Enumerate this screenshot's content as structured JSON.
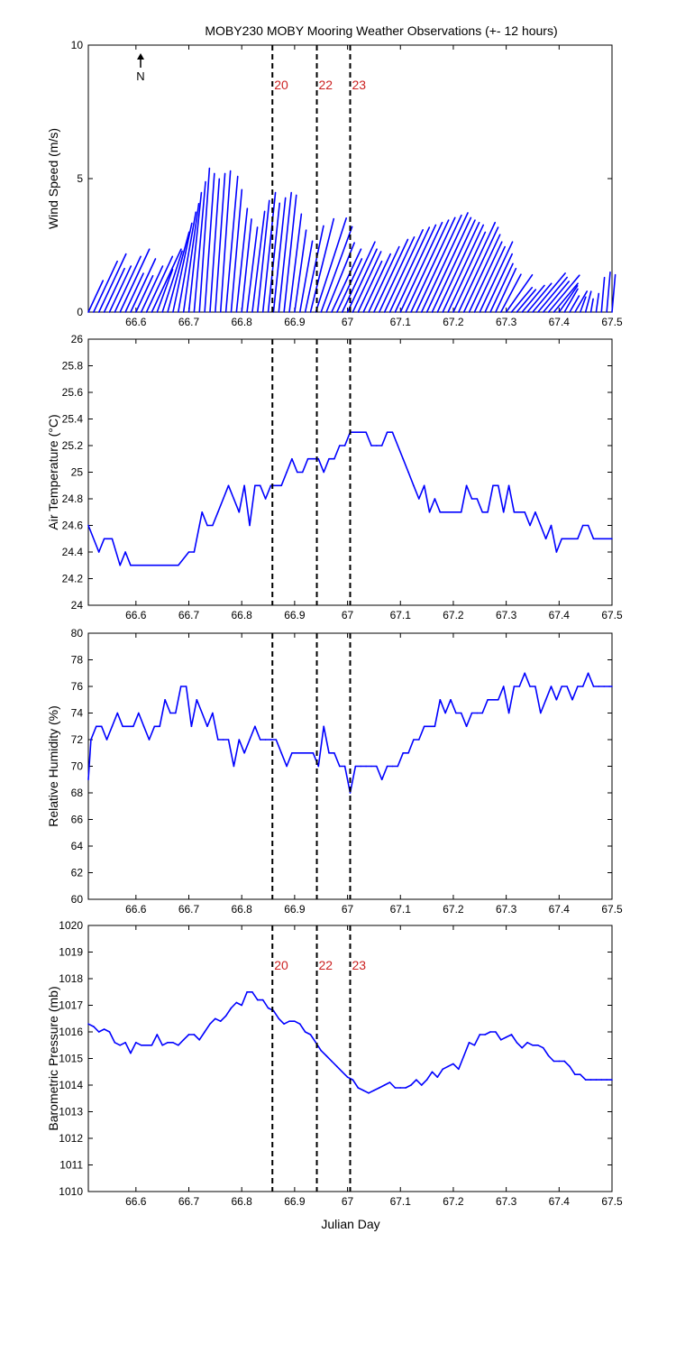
{
  "figure": {
    "title": "MOBY230 MOBY Mooring Weather Observations (+- 12 hours)",
    "xlabel": "Julian Day",
    "north_label": "N"
  },
  "colors": {
    "data": "#0000ff",
    "marker_label": "#cc2222",
    "axis": "#000000"
  },
  "chart_data": [
    {
      "type": "line",
      "variant": "wind-vector-stick",
      "ylabel": "Wind Speed (m/s)",
      "xlim": [
        66.51,
        67.5
      ],
      "ylim": [
        0,
        10
      ],
      "xticks": [
        66.6,
        66.7,
        66.8,
        66.9,
        67,
        67.1,
        67.2,
        67.3,
        67.4,
        67.5
      ],
      "yticks": [
        0,
        5,
        10
      ],
      "x_tick_labels_visible": true,
      "markers": [
        {
          "x": 66.858,
          "label": "20"
        },
        {
          "x": 66.942,
          "label": "22"
        },
        {
          "x": 67.005,
          "label": "23"
        }
      ],
      "series": [
        {
          "x": [
            66.51,
            66.52,
            66.53,
            66.54,
            66.55,
            66.56,
            66.57,
            66.58,
            66.59,
            66.6,
            66.61,
            66.62,
            66.63,
            66.64,
            66.65,
            66.66,
            66.67,
            66.68,
            66.69,
            66.7,
            66.71,
            66.72,
            66.73,
            66.74,
            66.75,
            66.76,
            66.77,
            66.78,
            66.79,
            66.8,
            66.81,
            66.82,
            66.83,
            66.84,
            66.85,
            66.86,
            66.87,
            66.88,
            66.89,
            66.9,
            66.91,
            66.92,
            66.93,
            66.94,
            66.95,
            66.96,
            66.97,
            66.98,
            66.99,
            67.0,
            67.01,
            67.02,
            67.03,
            67.04,
            67.05,
            67.06,
            67.07,
            67.08,
            67.09,
            67.1,
            67.11,
            67.12,
            67.13,
            67.14,
            67.15,
            67.16,
            67.17,
            67.18,
            67.19,
            67.2,
            67.21,
            67.22,
            67.23,
            67.24,
            67.25,
            67.26,
            67.27,
            67.28,
            67.29,
            67.3,
            67.31,
            67.32,
            67.33,
            67.34,
            67.35,
            67.36,
            67.37,
            67.38,
            67.39,
            67.4,
            67.41,
            67.42,
            67.43,
            67.44,
            67.45,
            67.46,
            67.47,
            67.48,
            67.49,
            67.5
          ],
          "speed": [
            1.3,
            2.1,
            2.4,
            1.8,
            1.9,
            2.3,
            2.6,
            1.6,
            2.2,
            1.5,
            1.9,
            2.3,
            2.6,
            1.7,
            2.4,
            3.1,
            3.4,
            3.8,
            4.1,
            4.5,
            4.9,
            5.4,
            5.2,
            5.0,
            5.2,
            5.3,
            5.1,
            4.6,
            3.9,
            3.5,
            3.2,
            3.8,
            4.2,
            4.5,
            4.1,
            4.3,
            4.5,
            4.4,
            3.7,
            3.1,
            2.7,
            3.3,
            3.6,
            3.7,
            3.4,
            2.8,
            2.6,
            2.2,
            2.9,
            2.6,
            2.5,
            2.1,
            2.4,
            2.7,
            3.0,
            3.1,
            3.4,
            3.5,
            3.6,
            3.7,
            3.8,
            3.9,
            4.0,
            4.1,
            3.9,
            3.8,
            3.7,
            3.6,
            3.3,
            3.7,
            3.5,
            3.2,
            2.9,
            2.7,
            2.9,
            2.4,
            2.0,
            1.8,
            1.6,
            1.7,
            1.2,
            1.1,
            1.3,
            1.4,
            1.9,
            1.7,
            1.5,
            1.8,
            1.4,
            1.2,
            1.0,
            0.7,
            0.9,
            0.6,
            0.8,
            0.5,
            0.7,
            1.3,
            1.5,
            1.4
          ],
          "dir_deg": [
            25,
            25,
            25,
            25,
            25,
            25,
            25,
            25,
            25,
            25,
            25,
            25,
            25,
            20,
            18,
            15,
            12,
            10,
            8,
            6,
            5,
            4,
            4,
            4,
            4,
            4,
            5,
            5,
            6,
            6,
            7,
            7,
            6,
            6,
            6,
            6,
            6,
            6,
            7,
            8,
            10,
            12,
            14,
            18,
            20,
            22,
            25,
            25,
            25,
            25,
            25,
            25,
            25,
            25,
            25,
            25,
            25,
            25,
            25,
            25,
            25,
            25,
            25,
            25,
            25,
            25,
            25,
            25,
            25,
            25,
            25,
            25,
            25,
            25,
            25,
            25,
            25,
            25,
            28,
            35,
            40,
            40,
            40,
            40,
            40,
            40,
            40,
            40,
            40,
            35,
            30,
            30,
            30,
            20,
            15,
            10,
            8,
            5,
            5,
            5
          ]
        }
      ]
    },
    {
      "type": "line",
      "ylabel": "Air Temperature (°C)",
      "xlim": [
        66.51,
        67.5
      ],
      "ylim": [
        24,
        26
      ],
      "xticks": [
        66.6,
        66.7,
        66.8,
        66.9,
        67,
        67.1,
        67.2,
        67.3,
        67.4,
        67.5
      ],
      "yticks": [
        24,
        24.2,
        24.4,
        24.6,
        24.8,
        25,
        25.2,
        25.4,
        25.6,
        25.8,
        26
      ],
      "x_tick_labels_visible": true,
      "markers": [
        {
          "x": 66.858
        },
        {
          "x": 66.942
        },
        {
          "x": 67.005
        }
      ],
      "series": [
        {
          "x": [
            66.51,
            66.53,
            66.54,
            66.555,
            66.57,
            66.58,
            66.59,
            66.605,
            66.62,
            66.64,
            66.66,
            66.68,
            66.7,
            66.71,
            66.725,
            66.735,
            66.745,
            66.755,
            66.765,
            66.775,
            66.785,
            66.795,
            66.805,
            66.815,
            66.825,
            66.835,
            66.845,
            66.855,
            66.865,
            66.875,
            66.885,
            66.895,
            66.905,
            66.915,
            66.925,
            66.935,
            66.945,
            66.955,
            66.965,
            66.975,
            66.985,
            66.995,
            67.005,
            67.015,
            67.025,
            67.035,
            67.045,
            67.055,
            67.065,
            67.075,
            67.085,
            67.095,
            67.105,
            67.115,
            67.125,
            67.135,
            67.145,
            67.155,
            67.165,
            67.175,
            67.185,
            67.195,
            67.205,
            67.215,
            67.225,
            67.235,
            67.245,
            67.255,
            67.265,
            67.275,
            67.285,
            67.295,
            67.305,
            67.315,
            67.325,
            67.335,
            67.345,
            67.355,
            67.365,
            67.375,
            67.385,
            67.395,
            67.405,
            67.415,
            67.425,
            67.435,
            67.445,
            67.455,
            67.465,
            67.475,
            67.485,
            67.495,
            67.5
          ],
          "y": [
            24.6,
            24.4,
            24.5,
            24.5,
            24.3,
            24.4,
            24.3,
            24.3,
            24.3,
            24.3,
            24.3,
            24.3,
            24.4,
            24.4,
            24.7,
            24.6,
            24.6,
            24.7,
            24.8,
            24.9,
            24.8,
            24.7,
            24.9,
            24.6,
            24.9,
            24.9,
            24.8,
            24.9,
            24.9,
            24.9,
            25.0,
            25.1,
            25.0,
            25.0,
            25.1,
            25.1,
            25.1,
            25.0,
            25.1,
            25.1,
            25.2,
            25.2,
            25.3,
            25.3,
            25.3,
            25.3,
            25.2,
            25.2,
            25.2,
            25.3,
            25.3,
            25.2,
            25.1,
            25.0,
            24.9,
            24.8,
            24.9,
            24.7,
            24.8,
            24.7,
            24.7,
            24.7,
            24.7,
            24.7,
            24.9,
            24.8,
            24.8,
            24.7,
            24.7,
            24.9,
            24.9,
            24.7,
            24.9,
            24.7,
            24.7,
            24.7,
            24.6,
            24.7,
            24.6,
            24.5,
            24.6,
            24.4,
            24.5,
            24.5,
            24.5,
            24.5,
            24.6,
            24.6,
            24.5,
            24.5,
            24.5,
            24.5,
            24.5
          ]
        }
      ]
    },
    {
      "type": "line",
      "ylabel": "Relative Humidity (%)",
      "xlim": [
        66.51,
        67.5
      ],
      "ylim": [
        60,
        80
      ],
      "xticks": [
        66.6,
        66.7,
        66.8,
        66.9,
        67,
        67.1,
        67.2,
        67.3,
        67.4,
        67.5
      ],
      "yticks": [
        60,
        62,
        64,
        66,
        68,
        70,
        72,
        74,
        76,
        78,
        80
      ],
      "x_tick_labels_visible": true,
      "markers": [
        {
          "x": 66.858
        },
        {
          "x": 66.942
        },
        {
          "x": 67.005
        }
      ],
      "series": [
        {
          "x": [
            66.51,
            66.515,
            66.525,
            66.535,
            66.545,
            66.555,
            66.565,
            66.575,
            66.585,
            66.595,
            66.605,
            66.615,
            66.625,
            66.635,
            66.645,
            66.655,
            66.665,
            66.675,
            66.685,
            66.695,
            66.705,
            66.715,
            66.725,
            66.735,
            66.745,
            66.755,
            66.765,
            66.775,
            66.785,
            66.795,
            66.805,
            66.815,
            66.825,
            66.835,
            66.845,
            66.855,
            66.865,
            66.875,
            66.885,
            66.895,
            66.905,
            66.915,
            66.925,
            66.935,
            66.945,
            66.955,
            66.965,
            66.975,
            66.985,
            66.995,
            67.005,
            67.015,
            67.025,
            67.035,
            67.045,
            67.055,
            67.065,
            67.075,
            67.085,
            67.095,
            67.105,
            67.115,
            67.125,
            67.135,
            67.145,
            67.155,
            67.165,
            67.175,
            67.185,
            67.195,
            67.205,
            67.215,
            67.225,
            67.235,
            67.245,
            67.255,
            67.265,
            67.275,
            67.285,
            67.295,
            67.305,
            67.315,
            67.325,
            67.335,
            67.345,
            67.355,
            67.365,
            67.375,
            67.385,
            67.395,
            67.405,
            67.415,
            67.425,
            67.435,
            67.445,
            67.455,
            67.465,
            67.475,
            67.485,
            67.495,
            67.5
          ],
          "y": [
            69,
            72,
            73,
            73,
            72,
            73,
            74,
            73,
            73,
            73,
            74,
            73,
            72,
            73,
            73,
            75,
            74,
            74,
            76,
            76,
            73,
            75,
            74,
            73,
            74,
            72,
            72,
            72,
            70,
            72,
            71,
            72,
            73,
            72,
            72,
            72,
            72,
            71,
            70,
            71,
            71,
            71,
            71,
            71,
            70,
            73,
            71,
            71,
            70,
            70,
            68,
            70,
            70,
            70,
            70,
            70,
            69,
            70,
            70,
            70,
            71,
            71,
            72,
            72,
            73,
            73,
            73,
            75,
            74,
            75,
            74,
            74,
            73,
            74,
            74,
            74,
            75,
            75,
            75,
            76,
            74,
            76,
            76,
            77,
            76,
            76,
            74,
            75,
            76,
            75,
            76,
            76,
            75,
            76,
            76,
            77,
            76,
            76,
            76,
            76,
            76
          ]
        }
      ]
    },
    {
      "type": "line",
      "ylabel": "Barometric Pressure (mb)",
      "xlim": [
        66.51,
        67.5
      ],
      "ylim": [
        1010,
        1020
      ],
      "xticks": [
        66.6,
        66.7,
        66.8,
        66.9,
        67,
        67.1,
        67.2,
        67.3,
        67.4,
        67.5
      ],
      "yticks": [
        1010,
        1011,
        1012,
        1013,
        1014,
        1015,
        1016,
        1017,
        1018,
        1019,
        1020
      ],
      "x_tick_labels_visible": true,
      "markers": [
        {
          "x": 66.858,
          "label": "20"
        },
        {
          "x": 66.942,
          "label": "22"
        },
        {
          "x": 67.005,
          "label": "23"
        }
      ],
      "series": [
        {
          "x": [
            66.51,
            66.52,
            66.53,
            66.54,
            66.55,
            66.56,
            66.57,
            66.58,
            66.59,
            66.6,
            66.61,
            66.62,
            66.63,
            66.64,
            66.65,
            66.66,
            66.67,
            66.68,
            66.69,
            66.7,
            66.71,
            66.72,
            66.73,
            66.74,
            66.75,
            66.76,
            66.77,
            66.78,
            66.79,
            66.8,
            66.81,
            66.82,
            66.83,
            66.84,
            66.85,
            66.86,
            66.87,
            66.88,
            66.89,
            66.9,
            66.91,
            66.92,
            66.93,
            66.94,
            66.95,
            66.96,
            66.97,
            66.98,
            66.99,
            67.0,
            67.01,
            67.02,
            67.03,
            67.04,
            67.05,
            67.06,
            67.07,
            67.08,
            67.09,
            67.1,
            67.11,
            67.12,
            67.13,
            67.14,
            67.15,
            67.16,
            67.17,
            67.18,
            67.19,
            67.2,
            67.21,
            67.22,
            67.23,
            67.24,
            67.25,
            67.26,
            67.27,
            67.28,
            67.29,
            67.3,
            67.31,
            67.32,
            67.33,
            67.34,
            67.35,
            67.36,
            67.37,
            67.38,
            67.39,
            67.4,
            67.41,
            67.42,
            67.43,
            67.44,
            67.45,
            67.46,
            67.47,
            67.48,
            67.49,
            67.5
          ],
          "y": [
            1016.3,
            1016.2,
            1016.0,
            1016.1,
            1016.0,
            1015.6,
            1015.5,
            1015.6,
            1015.2,
            1015.6,
            1015.5,
            1015.5,
            1015.5,
            1015.9,
            1015.5,
            1015.6,
            1015.6,
            1015.5,
            1015.7,
            1015.9,
            1015.9,
            1015.7,
            1016.0,
            1016.3,
            1016.5,
            1016.4,
            1016.6,
            1016.9,
            1017.1,
            1017.0,
            1017.5,
            1017.5,
            1017.2,
            1017.2,
            1016.9,
            1016.8,
            1016.5,
            1016.3,
            1016.4,
            1016.4,
            1016.3,
            1016.0,
            1015.9,
            1015.6,
            1015.3,
            1015.1,
            1014.9,
            1014.7,
            1014.5,
            1014.3,
            1014.2,
            1013.9,
            1013.8,
            1013.7,
            1013.8,
            1013.9,
            1014.0,
            1014.1,
            1013.9,
            1013.9,
            1013.9,
            1014.0,
            1014.2,
            1014.0,
            1014.2,
            1014.5,
            1014.3,
            1014.6,
            1014.7,
            1014.8,
            1014.6,
            1015.1,
            1015.6,
            1015.5,
            1015.9,
            1015.9,
            1016.0,
            1016.0,
            1015.7,
            1015.8,
            1015.9,
            1015.6,
            1015.4,
            1015.6,
            1015.5,
            1015.5,
            1015.4,
            1015.1,
            1014.9,
            1014.9,
            1014.9,
            1014.7,
            1014.4,
            1014.4,
            1014.2,
            1014.2,
            1014.2,
            1014.2,
            1014.2,
            1014.2
          ]
        }
      ]
    }
  ]
}
